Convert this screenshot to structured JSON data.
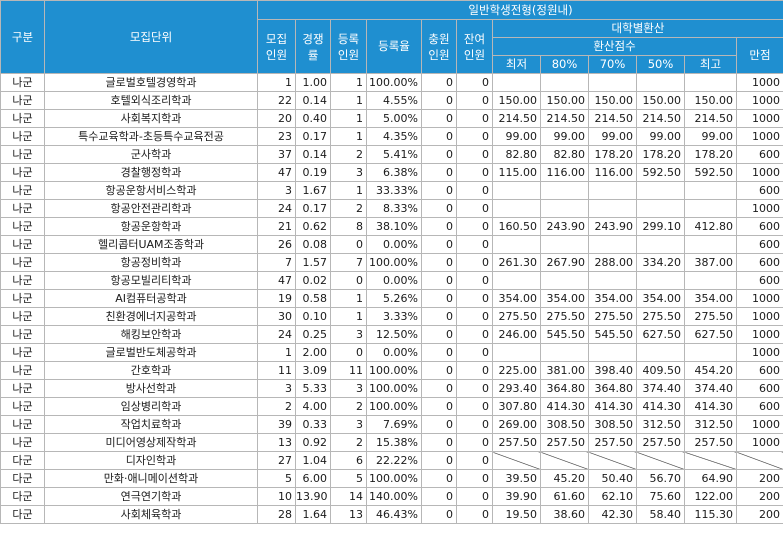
{
  "header": {
    "gubun": "구분",
    "unit": "모집단위",
    "recruit": "모집\n인원",
    "competition": "경쟁\n률",
    "registered": "등록\n인원",
    "reg_rate": "등록율",
    "extra": "충원\n인원",
    "remaining": "잔여\n인원",
    "group_title": "일반학생전형(정원내)",
    "conv_title": "대학별환산",
    "score_title": "환산점수",
    "min": "최저",
    "p80": "80%",
    "p70": "70%",
    "p50": "50%",
    "max": "최고",
    "perfect": "만점"
  },
  "rows": [
    [
      "나군",
      "글로벌호텔경영학과",
      "1",
      "1.00",
      "1",
      "100.00%",
      "0",
      "0",
      "",
      "",
      "",
      "",
      "",
      "1000"
    ],
    [
      "나군",
      "호텔외식조리학과",
      "22",
      "0.14",
      "1",
      "4.55%",
      "0",
      "0",
      "150.00",
      "150.00",
      "150.00",
      "150.00",
      "150.00",
      "1000"
    ],
    [
      "나군",
      "사회복지학과",
      "20",
      "0.40",
      "1",
      "5.00%",
      "0",
      "0",
      "214.50",
      "214.50",
      "214.50",
      "214.50",
      "214.50",
      "1000"
    ],
    [
      "나군",
      "특수교육학과-초등특수교육전공",
      "23",
      "0.17",
      "1",
      "4.35%",
      "0",
      "0",
      "99.00",
      "99.00",
      "99.00",
      "99.00",
      "99.00",
      "1000"
    ],
    [
      "나군",
      "군사학과",
      "37",
      "0.14",
      "2",
      "5.41%",
      "0",
      "0",
      "82.80",
      "82.80",
      "178.20",
      "178.20",
      "178.20",
      "600"
    ],
    [
      "나군",
      "경찰행정학과",
      "47",
      "0.19",
      "3",
      "6.38%",
      "0",
      "0",
      "115.00",
      "116.00",
      "116.00",
      "592.50",
      "592.50",
      "1000"
    ],
    [
      "나군",
      "항공운항서비스학과",
      "3",
      "1.67",
      "1",
      "33.33%",
      "0",
      "0",
      "",
      "",
      "",
      "",
      "",
      "600"
    ],
    [
      "나군",
      "항공안전관리학과",
      "24",
      "0.17",
      "2",
      "8.33%",
      "0",
      "0",
      "",
      "",
      "",
      "",
      "",
      "1000"
    ],
    [
      "나군",
      "항공운항학과",
      "21",
      "0.62",
      "8",
      "38.10%",
      "0",
      "0",
      "160.50",
      "243.90",
      "243.90",
      "299.10",
      "412.80",
      "600"
    ],
    [
      "나군",
      "헬리콥터UAM조종학과",
      "26",
      "0.08",
      "0",
      "0.00%",
      "0",
      "0",
      "",
      "",
      "",
      "",
      "",
      "600"
    ],
    [
      "나군",
      "항공정비학과",
      "7",
      "1.57",
      "7",
      "100.00%",
      "0",
      "0",
      "261.30",
      "267.90",
      "288.00",
      "334.20",
      "387.00",
      "600"
    ],
    [
      "나군",
      "항공모빌리티학과",
      "47",
      "0.02",
      "0",
      "0.00%",
      "0",
      "0",
      "",
      "",
      "",
      "",
      "",
      "600"
    ],
    [
      "나군",
      "AI컴퓨터공학과",
      "19",
      "0.58",
      "1",
      "5.26%",
      "0",
      "0",
      "354.00",
      "354.00",
      "354.00",
      "354.00",
      "354.00",
      "1000"
    ],
    [
      "나군",
      "친환경에너지공학과",
      "30",
      "0.10",
      "1",
      "3.33%",
      "0",
      "0",
      "275.50",
      "275.50",
      "275.50",
      "275.50",
      "275.50",
      "1000"
    ],
    [
      "나군",
      "해킹보안학과",
      "24",
      "0.25",
      "3",
      "12.50%",
      "0",
      "0",
      "246.00",
      "545.50",
      "545.50",
      "627.50",
      "627.50",
      "1000"
    ],
    [
      "나군",
      "글로벌반도체공학과",
      "1",
      "2.00",
      "0",
      "0.00%",
      "0",
      "0",
      "",
      "",
      "",
      "",
      "",
      "1000"
    ],
    [
      "나군",
      "간호학과",
      "11",
      "3.09",
      "11",
      "100.00%",
      "0",
      "0",
      "225.00",
      "381.00",
      "398.40",
      "409.50",
      "454.20",
      "600"
    ],
    [
      "나군",
      "방사선학과",
      "3",
      "5.33",
      "3",
      "100.00%",
      "0",
      "0",
      "293.40",
      "364.80",
      "364.80",
      "374.40",
      "374.40",
      "600"
    ],
    [
      "나군",
      "임상병리학과",
      "2",
      "4.00",
      "2",
      "100.00%",
      "0",
      "0",
      "307.80",
      "414.30",
      "414.30",
      "414.30",
      "414.30",
      "600"
    ],
    [
      "나군",
      "작업치료학과",
      "39",
      "0.33",
      "3",
      "7.69%",
      "0",
      "0",
      "269.00",
      "308.50",
      "308.50",
      "312.50",
      "312.50",
      "1000"
    ],
    [
      "나군",
      "미디어영상제작학과",
      "13",
      "0.92",
      "2",
      "15.38%",
      "0",
      "0",
      "257.50",
      "257.50",
      "257.50",
      "257.50",
      "257.50",
      "1000"
    ],
    [
      "다군",
      "디자인학과",
      "27",
      "1.04",
      "6",
      "22.22%",
      "0",
      "0",
      "",
      "",
      "",
      "",
      "",
      ""
    ],
    [
      "다군",
      "만화·애니메이션학과",
      "5",
      "6.00",
      "5",
      "100.00%",
      "0",
      "0",
      "39.50",
      "45.20",
      "50.40",
      "56.70",
      "64.90",
      "200"
    ],
    [
      "다군",
      "연극연기학과",
      "10",
      "13.90",
      "14",
      "140.00%",
      "0",
      "0",
      "39.90",
      "61.60",
      "62.10",
      "75.60",
      "122.00",
      "200"
    ],
    [
      "다군",
      "사회체육학과",
      "28",
      "1.64",
      "13",
      "46.43%",
      "0",
      "0",
      "19.50",
      "38.60",
      "42.30",
      "58.40",
      "115.30",
      "200"
    ]
  ],
  "diagonal_row_index": 21
}
